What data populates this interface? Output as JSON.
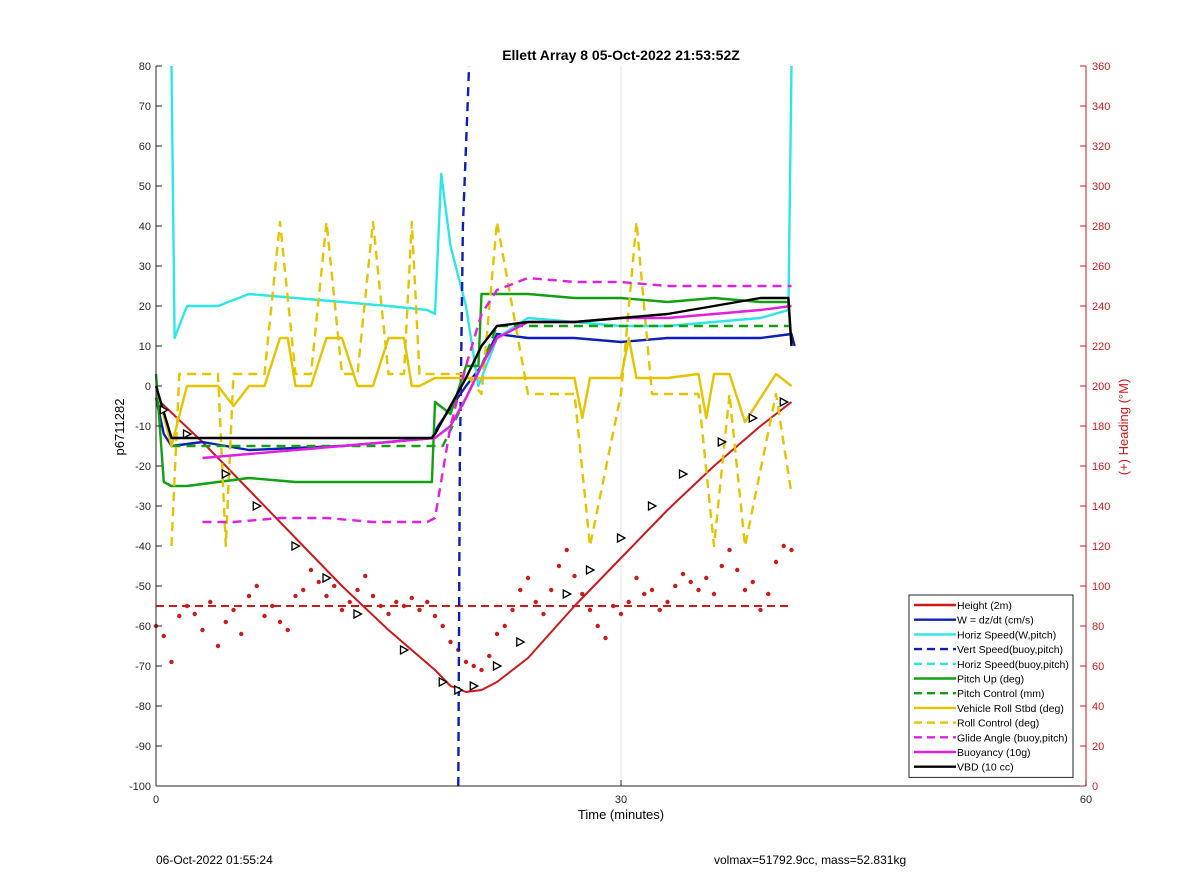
{
  "chart_data": {
    "type": "line",
    "title": "Ellett Array 8 05-Oct-2022 21:53:52Z",
    "xlabel": "Time (minutes)",
    "ylabel": "p6711282",
    "y2label": "(+) Heading (°M)",
    "xlim": [
      0,
      60
    ],
    "ylim": [
      -100,
      80
    ],
    "y2lim": [
      0,
      360
    ],
    "x_ticks": [
      0,
      30,
      60
    ],
    "y_ticks": [
      -100,
      -90,
      -80,
      -70,
      -60,
      -50,
      -40,
      -30,
      -20,
      -10,
      0,
      10,
      20,
      30,
      40,
      50,
      60,
      70,
      80
    ],
    "y2_ticks": [
      0,
      20,
      40,
      60,
      80,
      100,
      120,
      140,
      160,
      180,
      200,
      220,
      240,
      260,
      280,
      300,
      320,
      340,
      360
    ],
    "grid": "x-only",
    "legend_position": "bottom-right",
    "colors": {
      "height": "#cc1a1a",
      "w": "#0d1fb5",
      "cyan": "#2ee6e6",
      "green": "#12a012",
      "yellow": "#e5c300",
      "magenta": "#e020e0",
      "black": "#000000",
      "right_axis": "#cc1a1a"
    },
    "series": [
      {
        "name": "Height (2m)",
        "color": "#cc1a1a",
        "dash": false,
        "x": [
          0,
          3,
          6,
          9,
          12,
          15,
          18,
          19,
          20,
          21,
          22,
          24,
          27,
          30,
          33,
          36,
          39,
          41
        ],
        "y": [
          -3,
          -14,
          -26,
          -38,
          -50,
          -61,
          -71,
          -75,
          -76.5,
          -76,
          -74,
          -68,
          -55,
          -43,
          -31,
          -20,
          -10,
          -4
        ]
      },
      {
        "name": "W = dz/dt (cm/s)",
        "color": "#0d1fb5",
        "dash": false,
        "x": [
          0,
          0.5,
          1,
          3,
          6,
          9,
          12,
          15,
          17.8,
          18.2,
          20,
          21,
          22,
          24,
          27,
          30,
          33,
          36,
          39,
          41,
          41.2
        ],
        "y": [
          -3,
          -12,
          -15,
          -14,
          -16,
          -15.5,
          -15,
          -14,
          -13,
          -10,
          0,
          5,
          13,
          12,
          12,
          11,
          12,
          12,
          12,
          13,
          10
        ]
      },
      {
        "name": "Horiz Speed(W,pitch)",
        "color": "#2ee6e6",
        "dash": false,
        "x": [
          1,
          1.2,
          2,
          4,
          6,
          9,
          12,
          15,
          17.5,
          18,
          18.4,
          19,
          20,
          20.8,
          21,
          22,
          24,
          27,
          30,
          33,
          36,
          39,
          40.8,
          41
        ],
        "y": [
          80,
          12,
          20,
          20,
          23,
          22,
          21,
          20,
          19,
          18,
          53,
          35,
          20,
          0,
          2,
          12,
          17,
          16,
          15,
          15,
          16,
          17,
          19,
          80
        ]
      },
      {
        "name": "Vert Speed(buoy,pitch)",
        "color": "#0d1fb5",
        "dash": true,
        "x": [
          19.5,
          19.6,
          19.8,
          20.2
        ],
        "y": [
          -100,
          -20,
          40,
          80
        ]
      },
      {
        "name": "Horiz Speed(buoy,pitch)",
        "color": "#2ee6e6",
        "dash": true,
        "x": [],
        "y": []
      },
      {
        "name": "Pitch Up (deg)",
        "color": "#12a012",
        "dash": false,
        "x": [
          0,
          0.5,
          1,
          2,
          4,
          6,
          9,
          12,
          15,
          17.8,
          18,
          19,
          20,
          20.8,
          21,
          24,
          27,
          30,
          33,
          36,
          39,
          40.8,
          41
        ],
        "y": [
          3,
          -24,
          -25,
          -25,
          -24,
          -23,
          -24,
          -24,
          -24,
          -24,
          -4,
          -7,
          5,
          5,
          23,
          23,
          22,
          22,
          21,
          22,
          21,
          21,
          10
        ]
      },
      {
        "name": "Pitch Control (mm)",
        "color": "#12a012",
        "dash": true,
        "x": [
          1,
          18,
          18.5,
          21,
          22,
          41
        ],
        "y": [
          -15,
          -15,
          -15,
          5,
          15,
          15
        ]
      },
      {
        "name": "Vehicle Roll Stbd (deg)",
        "color": "#e5c300",
        "dash": false,
        "x": [
          0,
          1,
          2,
          4,
          5,
          6,
          7,
          8,
          8.5,
          9,
          10,
          11,
          12,
          13,
          14,
          15,
          16,
          16.5,
          17,
          18,
          20,
          21,
          22,
          24,
          27,
          27.5,
          28,
          30,
          30.5,
          31,
          33,
          35,
          35.5,
          36,
          37,
          38,
          40,
          41
        ],
        "y": [
          0,
          -15,
          0,
          0,
          -5,
          0,
          0,
          12,
          12,
          0,
          0,
          12,
          12,
          0,
          0,
          12,
          12,
          0,
          0,
          2,
          2,
          2,
          2,
          2,
          2,
          -8,
          2,
          2,
          12,
          2,
          2,
          3,
          -8,
          3,
          3,
          -9,
          3,
          0
        ]
      },
      {
        "name": "Roll Control (deg)",
        "color": "#e5c300",
        "dash": true,
        "x": [
          1,
          1.5,
          2,
          4,
          4.5,
          5,
          7,
          8,
          9,
          10,
          11,
          12,
          13,
          14,
          15,
          16,
          16.5,
          17,
          18,
          19,
          20,
          21,
          22,
          24,
          27,
          28,
          30,
          31,
          32,
          35,
          36,
          37,
          38,
          40,
          41
        ],
        "y": [
          -40,
          3,
          3,
          3,
          -40,
          3,
          3,
          41,
          3,
          3,
          41,
          3,
          3,
          41,
          3,
          3,
          41,
          3,
          3,
          3,
          3,
          -2,
          41,
          -2,
          -2,
          -40,
          -2,
          41,
          -2,
          -2,
          -40,
          -2,
          -40,
          -2,
          -27
        ]
      },
      {
        "name": "Glide Angle (buoy,pitch)",
        "color": "#e020e0",
        "dash": true,
        "x": [
          3,
          5,
          8,
          11,
          14,
          17.5,
          18,
          19,
          20,
          21,
          22,
          24,
          27,
          30,
          33,
          36,
          38,
          40,
          41
        ],
        "y": [
          -34,
          -34,
          -33,
          -33,
          -34,
          -34,
          -33,
          -10,
          5,
          18,
          24,
          27,
          26,
          26,
          25,
          25,
          25,
          25,
          25
        ]
      },
      {
        "name": "Buoyancy (10g)",
        "color": "#e020e0",
        "dash": false,
        "x": [
          3,
          6,
          9,
          12,
          15,
          18,
          19,
          20,
          21,
          22,
          24,
          27,
          30,
          33,
          36,
          39,
          41
        ],
        "y": [
          -18,
          -17,
          -16,
          -15,
          -14,
          -13,
          -10,
          -3,
          5,
          12,
          16,
          16,
          17,
          17,
          18,
          19,
          20
        ]
      },
      {
        "name": "VBD (10 cc)",
        "color": "#000000",
        "dash": false,
        "x": [
          0,
          1,
          3,
          6,
          9,
          12,
          15,
          17.8,
          18,
          20,
          21,
          22,
          24,
          27,
          30,
          33,
          36,
          39,
          40.8,
          41
        ],
        "y": [
          0,
          -13,
          -13,
          -13,
          -13,
          -13,
          -13,
          -13,
          -12,
          2,
          10,
          15,
          16,
          16,
          17,
          18,
          20,
          22,
          22,
          10
        ]
      }
    ],
    "heading_scatter": {
      "name": "Heading",
      "color": "#cc1a1a",
      "x": [
        0,
        0.5,
        1,
        1.5,
        2,
        2.5,
        3,
        3.5,
        4,
        4.5,
        5,
        5.5,
        6,
        6.5,
        7,
        7.5,
        8,
        8.5,
        9,
        9.5,
        10,
        10.5,
        11,
        11.5,
        12,
        12.5,
        13,
        13.5,
        14,
        14.5,
        15,
        15.5,
        16,
        16.5,
        17,
        17.5,
        18,
        18.5,
        19,
        19.5,
        20,
        20.5,
        21,
        21.5,
        22,
        22.5,
        23,
        23.5,
        24,
        24.5,
        25,
        25.5,
        26,
        26.5,
        27,
        27.5,
        28,
        28.5,
        29,
        29.5,
        30,
        30.5,
        31,
        31.5,
        32,
        32.5,
        33,
        33.5,
        34,
        34.5,
        35,
        35.5,
        36,
        36.5,
        37,
        37.5,
        38,
        38.5,
        39,
        39.5,
        40,
        40.5,
        41
      ],
      "y": [
        80,
        75,
        62,
        85,
        90,
        86,
        78,
        92,
        70,
        82,
        88,
        76,
        95,
        100,
        85,
        90,
        82,
        78,
        95,
        98,
        108,
        102,
        95,
        100,
        88,
        92,
        98,
        105,
        95,
        90,
        86,
        92,
        90,
        94,
        88,
        92,
        85,
        80,
        72,
        68,
        62,
        60,
        58,
        65,
        76,
        80,
        88,
        98,
        104,
        92,
        86,
        98,
        110,
        118,
        105,
        96,
        88,
        80,
        74,
        90,
        86,
        92,
        104,
        96,
        98,
        88,
        92,
        100,
        106,
        102,
        98,
        104,
        96,
        110,
        118,
        108,
        98,
        102,
        88,
        96,
        112,
        120,
        118
      ]
    },
    "heading_ref": {
      "name": "Heading reference",
      "y": 90,
      "color": "#cc1a1a"
    },
    "height_markers": {
      "x": [
        0.5,
        2,
        4.5,
        6.5,
        9,
        11,
        13,
        16,
        18.5,
        19.5,
        20.5,
        22,
        23.5,
        26.5,
        28,
        30,
        32,
        34,
        36.5,
        38.5,
        40.5
      ],
      "y": [
        -6,
        -12,
        -22,
        -30,
        -40,
        -48,
        -57,
        -66,
        -74,
        -76,
        -75,
        -70,
        -64,
        -52,
        -46,
        -38,
        -30,
        -22,
        -14,
        -8,
        -4
      ]
    }
  },
  "footer": {
    "timestamp": "06-Oct-2022 01:55:24",
    "info": "volmax=51792.9cc, mass=52.831kg"
  }
}
